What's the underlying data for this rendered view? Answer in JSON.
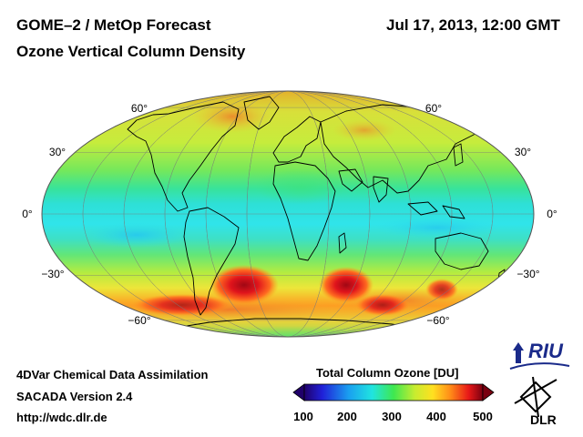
{
  "header": {
    "title_line1": "GOME–2 / MetOp Forecast",
    "title_line2": "Ozone Vertical Column Density",
    "datetime": "Jul 17, 2013, 12:00 GMT"
  },
  "footer": {
    "line1": "4DVar Chemical Data Assimilation",
    "line2": "SACADA Version 2.4",
    "line3": "http://wdc.dlr.de"
  },
  "colorbar": {
    "title": "Total Column Ozone [DU]",
    "ticks": [
      "100",
      "200",
      "300",
      "400",
      "500"
    ]
  },
  "map": {
    "lat_labels_left": [
      "60°",
      "30°",
      "0°",
      "−30°",
      "−60°"
    ],
    "lat_labels_right": [
      "60°",
      "30°",
      "0°",
      "−30°",
      "−60°"
    ]
  },
  "logos": {
    "riu": "RIU",
    "dlr": "DLR"
  },
  "colors": {
    "equator_band": "#2ee0e8",
    "tropics": "#4de86a",
    "midlat": "#c8ec3c",
    "hotspot": "#d8101a",
    "high": "#ff9a20"
  }
}
